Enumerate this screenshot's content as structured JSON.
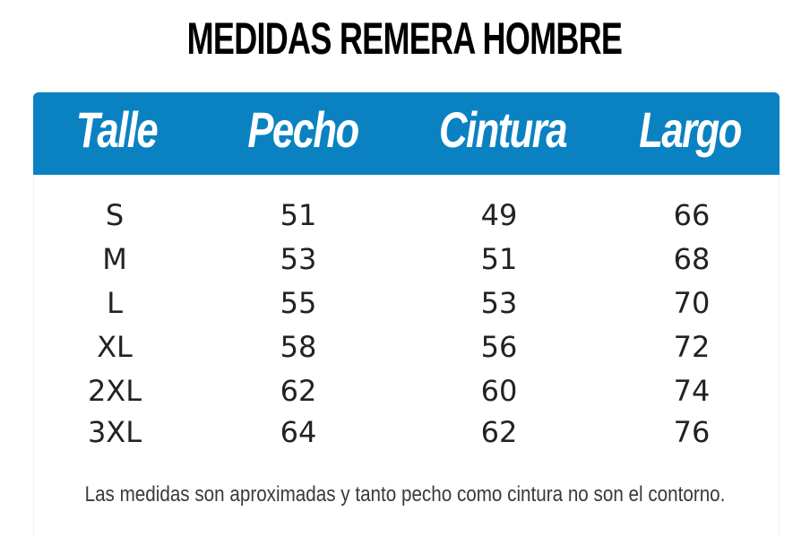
{
  "title": "MEDIDAS REMERA HOMBRE",
  "header": {
    "color": "#0a82c2",
    "columns": [
      "Talle",
      "Pecho",
      "Cintura",
      "Largo"
    ]
  },
  "rows": [
    [
      "S",
      "51",
      "49",
      "66"
    ],
    [
      "M",
      "53",
      "51",
      "68"
    ],
    [
      "L",
      "55",
      "53",
      "70"
    ],
    [
      "XL",
      "58",
      "56",
      "72"
    ],
    [
      "2XL",
      "62",
      "60",
      "74"
    ],
    [
      "3XL",
      "64",
      "62",
      "76"
    ]
  ],
  "note": "Las medidas son aproximadas y tanto pecho como cintura no son el contorno."
}
